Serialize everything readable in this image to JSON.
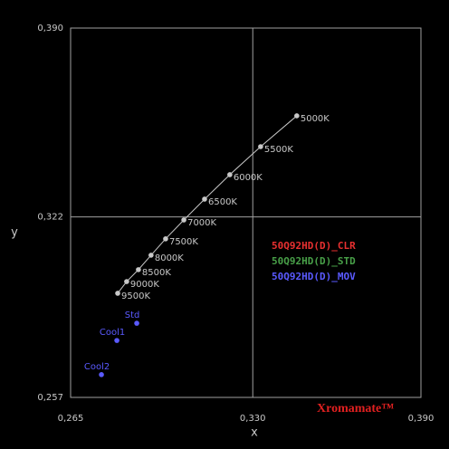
{
  "chart_data": {
    "type": "scatter",
    "x_label": "x",
    "y_label": "y",
    "xlim": [
      0.265,
      0.39
    ],
    "ylim": [
      0.257,
      0.39
    ],
    "xticks": [
      {
        "value": 0.265,
        "label": "0,265"
      },
      {
        "value": 0.33,
        "label": "0,330"
      },
      {
        "value": 0.39,
        "label": "0,390"
      }
    ],
    "yticks": [
      {
        "value": 0.257,
        "label": "0,257"
      },
      {
        "value": 0.322,
        "label": "0,322"
      },
      {
        "value": 0.39,
        "label": "0,390"
      }
    ],
    "grid": true,
    "series": [
      {
        "color": "#c8c8c8",
        "line": true,
        "labels": [
          "5000K",
          "5500K",
          "6000K",
          "6500K",
          "7000K",
          "7500K",
          "8000K",
          "8500K",
          "9000K",
          "9500K"
        ],
        "x": [
          0.3457,
          0.3328,
          0.3218,
          0.3128,
          0.3054,
          0.2989,
          0.2937,
          0.2892,
          0.285,
          0.2818
        ],
        "y": [
          0.3584,
          0.3473,
          0.3372,
          0.3284,
          0.3209,
          0.3141,
          0.3082,
          0.303,
          0.2987,
          0.2945
        ]
      },
      {
        "color": "#5a5aff",
        "line": false,
        "labels": [
          "Std",
          "Cool1",
          "Cool2"
        ],
        "x": [
          0.2886,
          0.2815,
          0.276
        ],
        "y": [
          0.2837,
          0.2775,
          0.2652
        ]
      }
    ],
    "legend": [
      {
        "name": "50Q92HD(D)_CLR",
        "color": "#e83030"
      },
      {
        "name": "50Q92HD(D)_STD",
        "color": "#48a048"
      },
      {
        "name": "50Q92HD(D)_MOV",
        "color": "#5a5aff"
      }
    ],
    "watermark": "Xromamate™"
  }
}
